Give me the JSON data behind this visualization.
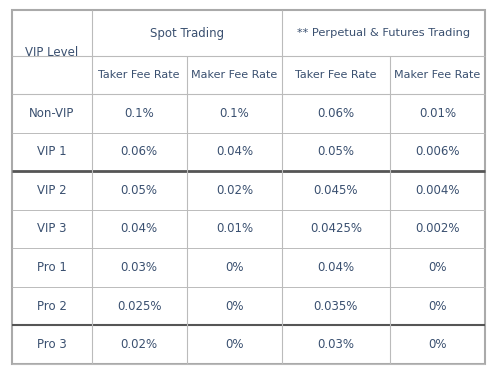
{
  "col_headers_top": [
    "VIP Level",
    "Spot Trading",
    "** Perpetual & Futures Trading"
  ],
  "col_headers_sub": [
    "",
    "Taker Fee Rate",
    "Maker Fee Rate",
    "Taker Fee Rate",
    "Maker Fee Rate"
  ],
  "rows": [
    [
      "Non-VIP",
      "0.1%",
      "0.1%",
      "0.06%",
      "0.01%"
    ],
    [
      "VIP 1",
      "0.06%",
      "0.04%",
      "0.05%",
      "0.006%"
    ],
    [
      "VIP 2",
      "0.05%",
      "0.02%",
      "0.045%",
      "0.004%"
    ],
    [
      "VIP 3",
      "0.04%",
      "0.01%",
      "0.0425%",
      "0.002%"
    ],
    [
      "Pro 1",
      "0.03%",
      "0%",
      "0.04%",
      "0%"
    ],
    [
      "Pro 2",
      "0.025%",
      "0%",
      "0.035%",
      "0%"
    ],
    [
      "Pro 3",
      "0.02%",
      "0%",
      "0.03%",
      "0%"
    ]
  ],
  "bg_color": "#ffffff",
  "outer_border_color": "#aaaaaa",
  "inner_border_color": "#bbbbbb",
  "thick_border_color": "#555555",
  "text_color": "#3a5070",
  "header_fontsize": 8.5,
  "cell_fontsize": 8.5,
  "figsize": [
    4.97,
    3.74
  ],
  "dpi": 100
}
